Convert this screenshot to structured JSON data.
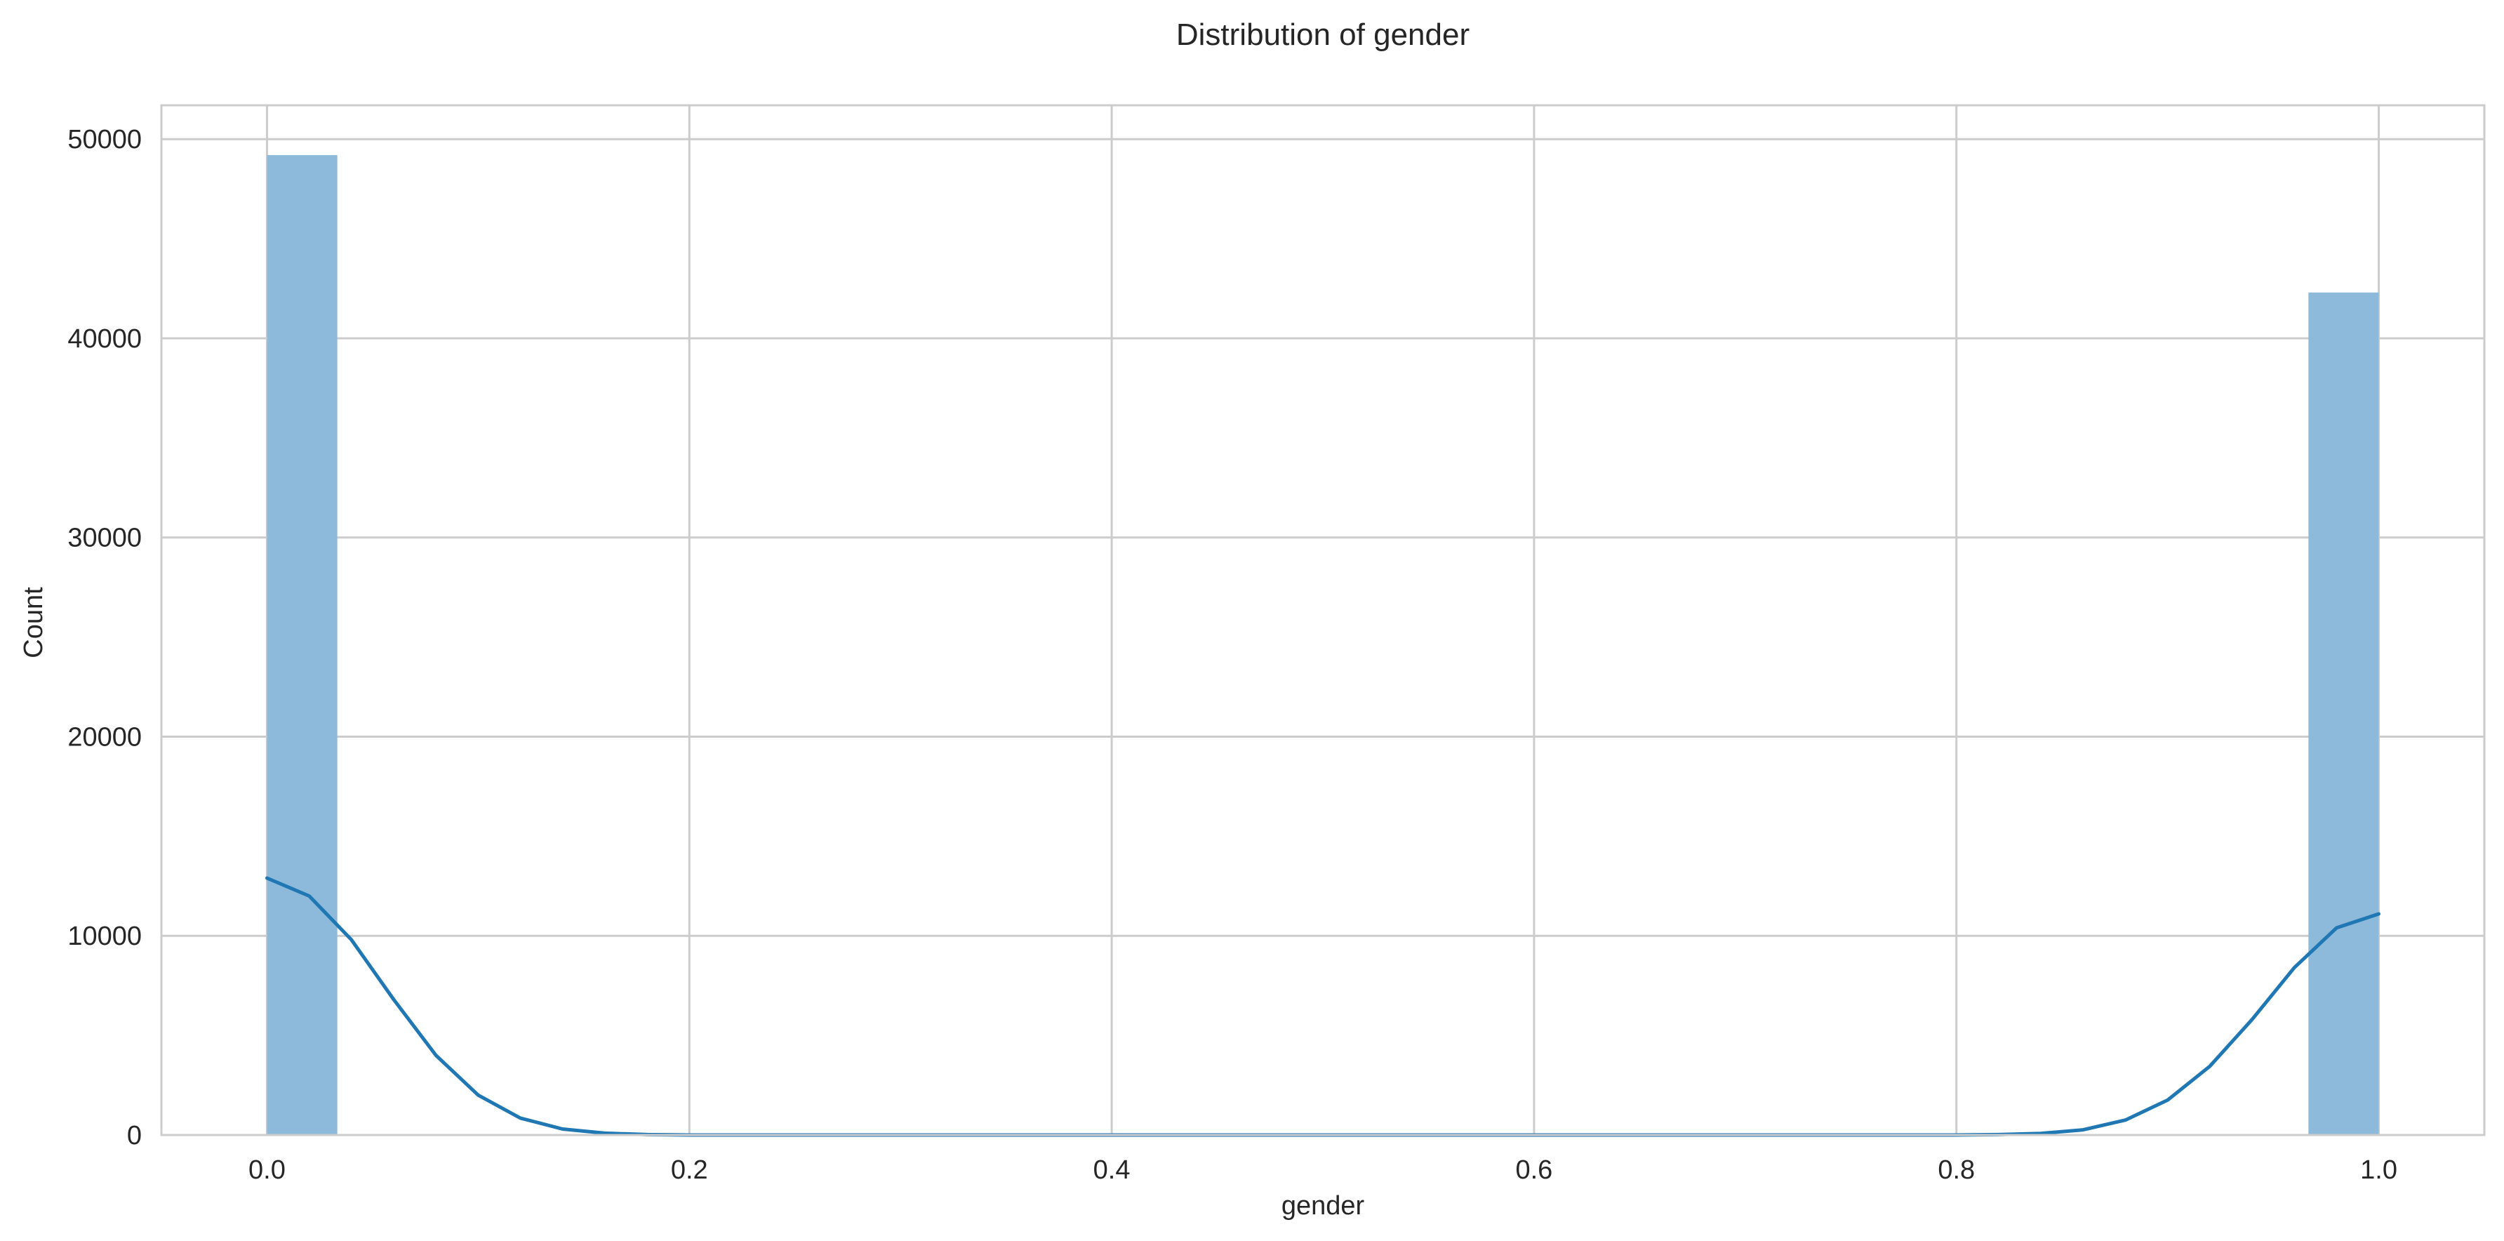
{
  "chart_data": {
    "type": "histogram",
    "title": "Distribution of gender",
    "xlabel": "gender",
    "ylabel": "Count",
    "xlim": [
      -0.05,
      1.05
    ],
    "ylim": [
      0,
      51700
    ],
    "x_ticks": [
      0.0,
      0.2,
      0.4,
      0.6,
      0.8,
      1.0
    ],
    "x_tick_labels": [
      "0.0",
      "0.2",
      "0.4",
      "0.6",
      "0.8",
      "1.0"
    ],
    "y_ticks": [
      0,
      10000,
      20000,
      30000,
      40000,
      50000
    ],
    "y_tick_labels": [
      "0",
      "10000",
      "20000",
      "30000",
      "40000",
      "50000"
    ],
    "grid": true,
    "bins": [
      {
        "x0": 0.0,
        "x1": 0.0333,
        "count": 49200
      },
      {
        "x0": 0.9667,
        "x1": 1.0,
        "count": 42300
      }
    ],
    "kde": {
      "x": [
        0.0,
        0.02,
        0.04,
        0.06,
        0.08,
        0.1,
        0.12,
        0.14,
        0.16,
        0.18,
        0.2,
        0.3,
        0.5,
        0.7,
        0.8,
        0.82,
        0.84,
        0.86,
        0.88,
        0.9,
        0.92,
        0.94,
        0.96,
        0.98,
        1.0
      ],
      "y": [
        12900,
        12000,
        9800,
        6800,
        4000,
        2000,
        850,
        300,
        90,
        20,
        0,
        0,
        0,
        0,
        0,
        20,
        80,
        260,
        750,
        1750,
        3450,
        5800,
        8400,
        10400,
        11100
      ]
    },
    "colors": {
      "bar": "#8db9da",
      "kde": "#1f77b4",
      "grid": "#cccccc",
      "frame": "#cccccc"
    }
  }
}
